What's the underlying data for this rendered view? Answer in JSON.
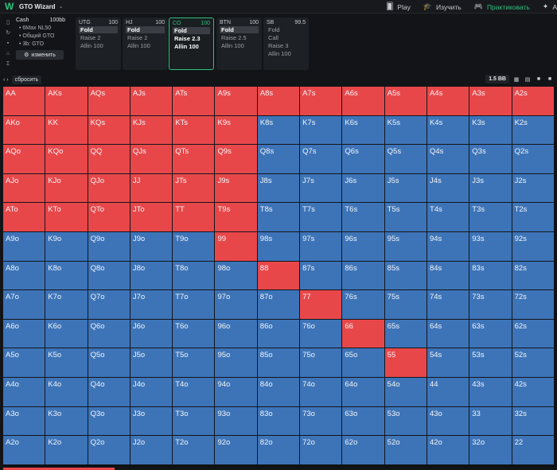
{
  "app": {
    "title": "GTO Wizard"
  },
  "nav": [
    {
      "label": "Play",
      "icon": "cards-icon",
      "active": false
    },
    {
      "label": "Изучить",
      "icon": "graduation-cap-icon",
      "active": false
    },
    {
      "label": "Практиковать",
      "icon": "gamepad-icon",
      "active": true
    },
    {
      "label": "A",
      "icon": "puzzle-icon",
      "active": false
    }
  ],
  "game": {
    "type": "Cash",
    "stack": "100bb",
    "lines": [
      "6Max NL50",
      "Общий GTO",
      "3b: GTO"
    ],
    "change_label": "изменить"
  },
  "positions": [
    {
      "name": "UTG",
      "stack": "100",
      "actions": [
        "Fold",
        "Raise 2",
        "Allin 100"
      ],
      "selected": 0
    },
    {
      "name": "HJ",
      "stack": "100",
      "actions": [
        "Fold",
        "Raise 2",
        "Allin 100"
      ],
      "selected": 0
    },
    {
      "name": "CO",
      "stack": "100",
      "actions": [
        "Fold",
        "Raise 2.3",
        "Allin 100"
      ],
      "selected": 0
    },
    {
      "name": "BTN",
      "stack": "100",
      "actions": [
        "Fold",
        "Raise 2.5",
        "Allin 100"
      ],
      "selected": 0
    },
    {
      "name": "SB",
      "stack": "99.5",
      "actions": [
        "Fold",
        "Call",
        "Raise 3",
        "Allin 100"
      ],
      "selected": -1
    }
  ],
  "toolbar": {
    "reset_label": "сбросить",
    "bb_label": "1.5 BB"
  },
  "colors": {
    "raise": "#e8474a",
    "fold": "#3d74b8",
    "accent": "#2ec27e"
  },
  "matrix": [
    [
      [
        "AA",
        "r"
      ],
      [
        "AKs",
        "r"
      ],
      [
        "AQs",
        "r"
      ],
      [
        "AJs",
        "r"
      ],
      [
        "ATs",
        "r"
      ],
      [
        "A9s",
        "r"
      ],
      [
        "A8s",
        "r"
      ],
      [
        "A7s",
        "r"
      ],
      [
        "A6s",
        "r"
      ],
      [
        "A5s",
        "r"
      ],
      [
        "A4s",
        "r"
      ],
      [
        "A3s",
        "r"
      ],
      [
        "A2s",
        "r"
      ]
    ],
    [
      [
        "AKo",
        "r"
      ],
      [
        "KK",
        "r"
      ],
      [
        "KQs",
        "r"
      ],
      [
        "KJs",
        "r"
      ],
      [
        "KTs",
        "r"
      ],
      [
        "K9s",
        "r"
      ],
      [
        "K8s",
        "b"
      ],
      [
        "K7s",
        "b"
      ],
      [
        "K6s",
        "b"
      ],
      [
        "K5s",
        "b"
      ],
      [
        "K4s",
        "b"
      ],
      [
        "K3s",
        "b"
      ],
      [
        "K2s",
        "b"
      ]
    ],
    [
      [
        "AQo",
        "r"
      ],
      [
        "KQo",
        "r"
      ],
      [
        "QQ",
        "r"
      ],
      [
        "QJs",
        "r"
      ],
      [
        "QTs",
        "r"
      ],
      [
        "Q9s",
        "r"
      ],
      [
        "Q8s",
        "b"
      ],
      [
        "Q7s",
        "b"
      ],
      [
        "Q6s",
        "b"
      ],
      [
        "Q5s",
        "b"
      ],
      [
        "Q4s",
        "b"
      ],
      [
        "Q3s",
        "b"
      ],
      [
        "Q2s",
        "b"
      ]
    ],
    [
      [
        "AJo",
        "r"
      ],
      [
        "KJo",
        "r"
      ],
      [
        "QJo",
        "r"
      ],
      [
        "JJ",
        "r"
      ],
      [
        "JTs",
        "r"
      ],
      [
        "J9s",
        "r"
      ],
      [
        "J8s",
        "b"
      ],
      [
        "J7s",
        "b"
      ],
      [
        "J6s",
        "b"
      ],
      [
        "J5s",
        "b"
      ],
      [
        "J4s",
        "b"
      ],
      [
        "J3s",
        "b"
      ],
      [
        "J2s",
        "b"
      ]
    ],
    [
      [
        "ATo",
        "r"
      ],
      [
        "KTo",
        "r"
      ],
      [
        "QTo",
        "r"
      ],
      [
        "JTo",
        "r"
      ],
      [
        "TT",
        "r"
      ],
      [
        "T9s",
        "r"
      ],
      [
        "T8s",
        "b"
      ],
      [
        "T7s",
        "b"
      ],
      [
        "T6s",
        "b"
      ],
      [
        "T5s",
        "b"
      ],
      [
        "T4s",
        "b"
      ],
      [
        "T3s",
        "b"
      ],
      [
        "T2s",
        "b"
      ]
    ],
    [
      [
        "A9o",
        "b"
      ],
      [
        "K9o",
        "b"
      ],
      [
        "Q9o",
        "b"
      ],
      [
        "J9o",
        "b"
      ],
      [
        "T9o",
        "b"
      ],
      [
        "99",
        "r"
      ],
      [
        "98s",
        "b"
      ],
      [
        "97s",
        "b"
      ],
      [
        "96s",
        "b"
      ],
      [
        "95s",
        "b"
      ],
      [
        "94s",
        "b"
      ],
      [
        "93s",
        "b"
      ],
      [
        "92s",
        "b"
      ]
    ],
    [
      [
        "A8o",
        "b"
      ],
      [
        "K8o",
        "b"
      ],
      [
        "Q8o",
        "b"
      ],
      [
        "J8o",
        "b"
      ],
      [
        "T8o",
        "b"
      ],
      [
        "98o",
        "b"
      ],
      [
        "88",
        "r"
      ],
      [
        "87s",
        "b"
      ],
      [
        "86s",
        "b"
      ],
      [
        "85s",
        "b"
      ],
      [
        "84s",
        "b"
      ],
      [
        "83s",
        "b"
      ],
      [
        "82s",
        "b"
      ]
    ],
    [
      [
        "A7o",
        "b"
      ],
      [
        "K7o",
        "b"
      ],
      [
        "Q7o",
        "b"
      ],
      [
        "J7o",
        "b"
      ],
      [
        "T7o",
        "b"
      ],
      [
        "97o",
        "b"
      ],
      [
        "87o",
        "b"
      ],
      [
        "77",
        "r"
      ],
      [
        "76s",
        "b"
      ],
      [
        "75s",
        "b"
      ],
      [
        "74s",
        "b"
      ],
      [
        "73s",
        "b"
      ],
      [
        "72s",
        "b"
      ]
    ],
    [
      [
        "A6o",
        "b"
      ],
      [
        "K6o",
        "b"
      ],
      [
        "Q6o",
        "b"
      ],
      [
        "J6o",
        "b"
      ],
      [
        "T6o",
        "b"
      ],
      [
        "96o",
        "b"
      ],
      [
        "86o",
        "b"
      ],
      [
        "76o",
        "b"
      ],
      [
        "66",
        "r"
      ],
      [
        "65s",
        "b"
      ],
      [
        "64s",
        "b"
      ],
      [
        "63s",
        "b"
      ],
      [
        "62s",
        "b"
      ]
    ],
    [
      [
        "A5o",
        "b"
      ],
      [
        "K5o",
        "b"
      ],
      [
        "Q5o",
        "b"
      ],
      [
        "J5o",
        "b"
      ],
      [
        "T5o",
        "b"
      ],
      [
        "95o",
        "b"
      ],
      [
        "85o",
        "b"
      ],
      [
        "75o",
        "b"
      ],
      [
        "65o",
        "b"
      ],
      [
        "55",
        "r"
      ],
      [
        "54s",
        "b"
      ],
      [
        "53s",
        "b"
      ],
      [
        "52s",
        "b"
      ]
    ],
    [
      [
        "A4o",
        "b"
      ],
      [
        "K4o",
        "b"
      ],
      [
        "Q4o",
        "b"
      ],
      [
        "J4o",
        "b"
      ],
      [
        "T4o",
        "b"
      ],
      [
        "94o",
        "b"
      ],
      [
        "84o",
        "b"
      ],
      [
        "74o",
        "b"
      ],
      [
        "64o",
        "b"
      ],
      [
        "54o",
        "b"
      ],
      [
        "44",
        "b"
      ],
      [
        "43s",
        "b"
      ],
      [
        "42s",
        "b"
      ]
    ],
    [
      [
        "A3o",
        "b"
      ],
      [
        "K3o",
        "b"
      ],
      [
        "Q3o",
        "b"
      ],
      [
        "J3o",
        "b"
      ],
      [
        "T3o",
        "b"
      ],
      [
        "93o",
        "b"
      ],
      [
        "83o",
        "b"
      ],
      [
        "73o",
        "b"
      ],
      [
        "63o",
        "b"
      ],
      [
        "53o",
        "b"
      ],
      [
        "43o",
        "b"
      ],
      [
        "33",
        "b"
      ],
      [
        "32s",
        "b"
      ]
    ],
    [
      [
        "A2o",
        "b"
      ],
      [
        "K2o",
        "b"
      ],
      [
        "Q2o",
        "b"
      ],
      [
        "J2o",
        "b"
      ],
      [
        "T2o",
        "b"
      ],
      [
        "92o",
        "b"
      ],
      [
        "82o",
        "b"
      ],
      [
        "72o",
        "b"
      ],
      [
        "62o",
        "b"
      ],
      [
        "52o",
        "b"
      ],
      [
        "42o",
        "b"
      ],
      [
        "32o",
        "b"
      ],
      [
        "22",
        "b"
      ]
    ]
  ]
}
